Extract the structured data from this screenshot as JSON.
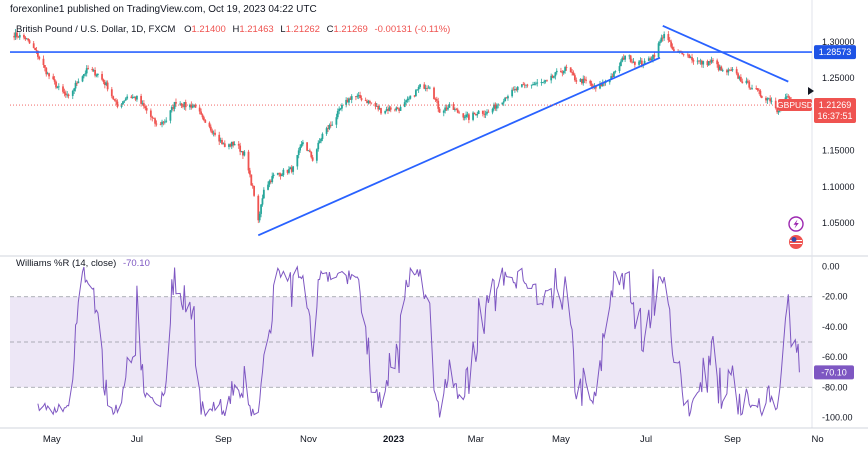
{
  "header": {
    "publisher_text": "forexonline1 published on TradingView.com, Oct 19, 2023 04:22 UTC"
  },
  "legend": {
    "symbol_description": "British Pound / U.S. Dollar, 1D, FXCM",
    "open_label": "O",
    "open": "1.21400",
    "high_label": "H",
    "high": "1.21463",
    "low_label": "L",
    "low": "1.21262",
    "close_label": "C",
    "close": "1.21269",
    "change": "-0.00131 (-0.11%)"
  },
  "indicator": {
    "title": "Williams %R (14, close)",
    "value": "-70.10"
  },
  "colors": {
    "up": "#26a69a",
    "down": "#ef5350",
    "trendline": "#2962ff",
    "williams": "#7e57c2",
    "band_fill": "#ede7f6",
    "price_tag": "#ef5350",
    "hline_tag": "#1e53e5"
  },
  "icons": [
    "lightning-icon",
    "us-uk-flag-icon",
    "arrow-right-icon"
  ],
  "chart_data": [
    {
      "type": "candlestick",
      "symbol": "GBPUSD",
      "ylim": [
        1.01,
        1.33
      ],
      "y_ticks": [
        "1.30000",
        "1.25000",
        "1.20000",
        "1.15000",
        "1.10000",
        "1.05000"
      ],
      "y_tick_values": [
        1.3,
        1.25,
        1.2,
        1.15,
        1.1,
        1.05
      ],
      "x_labels": [
        "May",
        "Jul",
        "Sep",
        "Nov",
        "2023",
        "Mar",
        "May",
        "Jul",
        "Sep",
        "No"
      ],
      "close_path": [
        [
          "2022-04-04",
          1.31
        ],
        [
          "2022-04-12",
          1.305
        ],
        [
          "2022-04-20",
          1.285
        ],
        [
          "2022-04-28",
          1.255
        ],
        [
          "2022-05-06",
          1.235
        ],
        [
          "2022-05-13",
          1.222
        ],
        [
          "2022-05-20",
          1.248
        ],
        [
          "2022-05-27",
          1.262
        ],
        [
          "2022-06-03",
          1.255
        ],
        [
          "2022-06-10",
          1.238
        ],
        [
          "2022-06-17",
          1.21
        ],
        [
          "2022-06-24",
          1.225
        ],
        [
          "2022-07-01",
          1.222
        ],
        [
          "2022-07-08",
          1.205
        ],
        [
          "2022-07-15",
          1.185
        ],
        [
          "2022-07-22",
          1.192
        ],
        [
          "2022-07-29",
          1.218
        ],
        [
          "2022-08-05",
          1.212
        ],
        [
          "2022-08-12",
          1.212
        ],
        [
          "2022-08-19",
          1.185
        ],
        [
          "2022-08-26",
          1.175
        ],
        [
          "2022-09-02",
          1.155
        ],
        [
          "2022-09-09",
          1.16
        ],
        [
          "2022-09-16",
          1.145
        ],
        [
          "2022-09-23",
          1.09
        ],
        [
          "2022-09-26",
          1.05
        ],
        [
          "2022-09-30",
          1.098
        ],
        [
          "2022-10-07",
          1.115
        ],
        [
          "2022-10-14",
          1.12
        ],
        [
          "2022-10-21",
          1.125
        ],
        [
          "2022-10-28",
          1.162
        ],
        [
          "2022-11-04",
          1.138
        ],
        [
          "2022-11-11",
          1.172
        ],
        [
          "2022-11-18",
          1.188
        ],
        [
          "2022-11-25",
          1.21
        ],
        [
          "2022-12-02",
          1.225
        ],
        [
          "2022-12-09",
          1.222
        ],
        [
          "2022-12-16",
          1.215
        ],
        [
          "2022-12-23",
          1.205
        ],
        [
          "2022-12-30",
          1.208
        ],
        [
          "2023-01-06",
          1.208
        ],
        [
          "2023-01-13",
          1.222
        ],
        [
          "2023-01-20",
          1.238
        ],
        [
          "2023-01-27",
          1.24
        ],
        [
          "2023-02-03",
          1.205
        ],
        [
          "2023-02-10",
          1.21
        ],
        [
          "2023-02-17",
          1.202
        ],
        [
          "2023-02-24",
          1.195
        ],
        [
          "2023-03-03",
          1.204
        ],
        [
          "2023-03-10",
          1.202
        ],
        [
          "2023-03-17",
          1.215
        ],
        [
          "2023-03-24",
          1.227
        ],
        [
          "2023-03-31",
          1.235
        ],
        [
          "2023-04-07",
          1.241
        ],
        [
          "2023-04-14",
          1.242
        ],
        [
          "2023-04-21",
          1.244
        ],
        [
          "2023-04-28",
          1.256
        ],
        [
          "2023-05-05",
          1.263
        ],
        [
          "2023-05-12",
          1.247
        ],
        [
          "2023-05-19",
          1.245
        ],
        [
          "2023-05-26",
          1.235
        ],
        [
          "2023-06-02",
          1.245
        ],
        [
          "2023-06-09",
          1.257
        ],
        [
          "2023-06-16",
          1.282
        ],
        [
          "2023-06-23",
          1.272
        ],
        [
          "2023-06-30",
          1.27
        ],
        [
          "2023-07-07",
          1.283
        ],
        [
          "2023-07-14",
          1.312
        ],
        [
          "2023-07-21",
          1.285
        ],
        [
          "2023-07-28",
          1.286
        ],
        [
          "2023-08-04",
          1.275
        ],
        [
          "2023-08-11",
          1.27
        ],
        [
          "2023-08-18",
          1.273
        ],
        [
          "2023-08-25",
          1.258
        ],
        [
          "2023-09-01",
          1.259
        ],
        [
          "2023-09-08",
          1.246
        ],
        [
          "2023-09-15",
          1.238
        ],
        [
          "2023-09-22",
          1.225
        ],
        [
          "2023-09-29",
          1.22
        ],
        [
          "2023-10-03",
          1.205
        ],
        [
          "2023-10-10",
          1.225
        ],
        [
          "2023-10-13",
          1.213
        ],
        [
          "2023-10-19",
          1.2127
        ]
      ],
      "horizontal_line": {
        "value": 1.28573,
        "label": "1.28573"
      },
      "current_price": {
        "value": 1.21269,
        "symbol_label": "GBPUSD",
        "price_label": "1.21269",
        "countdown": "16:37:51"
      },
      "trendlines": [
        {
          "from": [
            "2022-09-26",
            1.033
          ],
          "to": [
            "2023-07-11",
            1.278
          ]
        },
        {
          "from": [
            "2023-07-13",
            1.322
          ],
          "to": [
            "2023-10-11",
            1.245
          ]
        }
      ]
    },
    {
      "type": "line",
      "name": "Williams %R (14, close)",
      "ylim": [
        -105,
        3
      ],
      "y_ticks": [
        "0.00",
        "-20.00",
        "-40.00",
        "-60.00",
        "-80.00",
        "-100.00"
      ],
      "y_tick_values": [
        0,
        -20,
        -40,
        -60,
        -80,
        -100
      ],
      "bands": {
        "upper": -20,
        "middle": -50,
        "lower": -80
      },
      "last_value": -70.1,
      "last_label": "-70.10"
    }
  ]
}
